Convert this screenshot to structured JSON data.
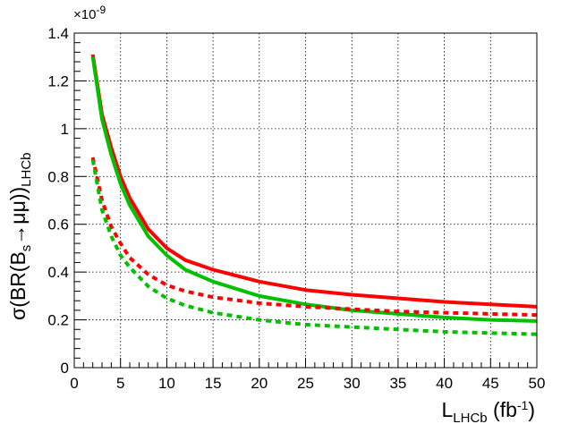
{
  "chart_data": {
    "type": "line",
    "xlabel": {
      "main": "L",
      "sub": "LHCb",
      "unit_open": " (fb",
      "unit_exp": "-1",
      "unit_close": ")"
    },
    "ylabel": {
      "prefix": "σ(BR(B",
      "sub_s": "s",
      "arrow": "→μμ))",
      "sub": "LHCb"
    },
    "y_multiplier": {
      "base": "×10",
      "exp": "-9"
    },
    "xlim": [
      0,
      50
    ],
    "ylim": [
      0,
      1.4
    ],
    "x_ticks": [
      0,
      5,
      10,
      15,
      20,
      25,
      30,
      35,
      40,
      45,
      50
    ],
    "y_ticks": [
      0,
      0.2,
      0.4,
      0.6,
      0.8,
      1,
      1.2,
      1.4
    ],
    "x_tick_labels": [
      "0",
      "5",
      "10",
      "15",
      "20",
      "25",
      "30",
      "35",
      "40",
      "45",
      "50"
    ],
    "y_tick_labels": [
      "0",
      "0.2",
      "0.4",
      "0.6",
      "0.8",
      "1",
      "1.2",
      "1.4"
    ],
    "grid": true,
    "series": [
      {
        "color": "#ff0000",
        "dash": "solid",
        "x": [
          2,
          3,
          4,
          5,
          6,
          8,
          10,
          12,
          15,
          20,
          25,
          30,
          35,
          40,
          45,
          50
        ],
        "y": [
          1.31,
          1.06,
          0.92,
          0.8,
          0.71,
          0.58,
          0.5,
          0.45,
          0.41,
          0.36,
          0.325,
          0.305,
          0.29,
          0.275,
          0.265,
          0.255
        ]
      },
      {
        "color": "#00c000",
        "dash": "solid",
        "x": [
          2,
          3,
          4,
          5,
          6,
          8,
          10,
          12,
          15,
          20,
          25,
          30,
          35,
          40,
          45,
          50
        ],
        "y": [
          1.3,
          1.04,
          0.89,
          0.77,
          0.68,
          0.55,
          0.47,
          0.41,
          0.36,
          0.3,
          0.265,
          0.24,
          0.225,
          0.21,
          0.2,
          0.195
        ]
      },
      {
        "color": "#ff0000",
        "dash": "dashed",
        "x": [
          2,
          3,
          4,
          5,
          6,
          8,
          10,
          12,
          15,
          20,
          25,
          30,
          35,
          40,
          45,
          50
        ],
        "y": [
          0.88,
          0.7,
          0.59,
          0.52,
          0.46,
          0.39,
          0.345,
          0.32,
          0.295,
          0.27,
          0.255,
          0.245,
          0.235,
          0.23,
          0.225,
          0.22
        ]
      },
      {
        "color": "#00c000",
        "dash": "dashed",
        "x": [
          2,
          3,
          4,
          5,
          6,
          8,
          10,
          12,
          15,
          20,
          25,
          30,
          35,
          40,
          45,
          50
        ],
        "y": [
          0.87,
          0.66,
          0.55,
          0.47,
          0.42,
          0.34,
          0.29,
          0.26,
          0.23,
          0.2,
          0.18,
          0.17,
          0.16,
          0.15,
          0.145,
          0.14
        ]
      }
    ]
  }
}
